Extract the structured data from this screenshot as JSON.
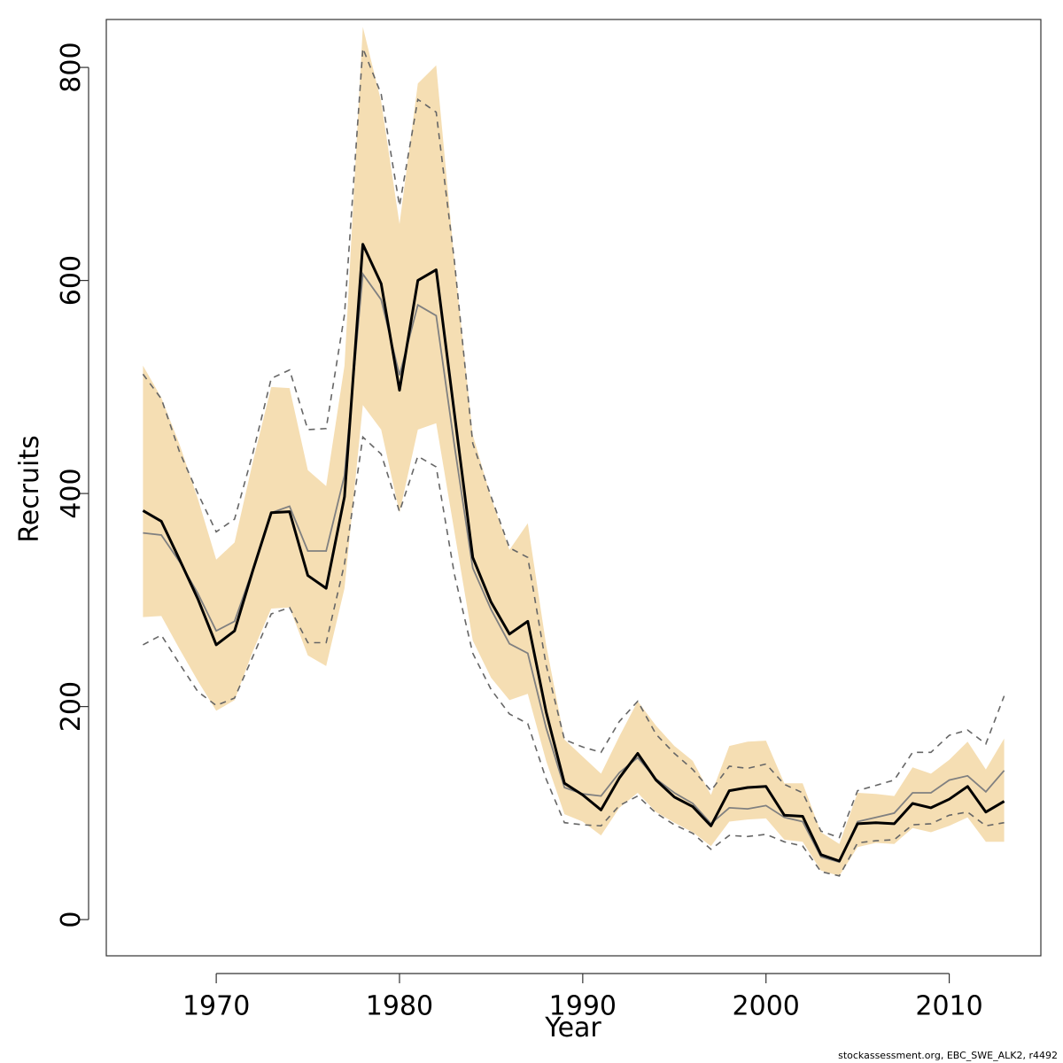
{
  "chart_data": {
    "type": "line",
    "xlabel": "Year",
    "ylabel": "Recruits",
    "xlim": [
      1964,
      2015
    ],
    "ylim": [
      -34,
      845
    ],
    "x_ticks": [
      1970,
      1980,
      1990,
      2000,
      2010
    ],
    "y_ticks": [
      0,
      200,
      400,
      600,
      800
    ],
    "grid": false,
    "legend": "none",
    "colors": {
      "band": "#f5deb3",
      "estimate": "#000000",
      "alternate": "#808080",
      "interval": "#666666"
    },
    "x": [
      1966,
      1967,
      1968,
      1969,
      1970,
      1971,
      1972,
      1973,
      1974,
      1975,
      1976,
      1977,
      1978,
      1979,
      1980,
      1981,
      1982,
      1983,
      1984,
      1985,
      1986,
      1987,
      1988,
      1989,
      1990,
      1991,
      1992,
      1993,
      1994,
      1995,
      1996,
      1997,
      1998,
      1999,
      2000,
      2001,
      2002,
      2003,
      2004,
      2005,
      2006,
      2007,
      2008,
      2009,
      2010,
      2011,
      2012,
      2013
    ],
    "series": [
      {
        "role": "estimate",
        "values": [
          384,
          374,
          338,
          301,
          258,
          271,
          328,
          382,
          383,
          323,
          311,
          397,
          634,
          597,
          497,
          600,
          610,
          475,
          340,
          298,
          268,
          280,
          195,
          128,
          117,
          103,
          133,
          156,
          131,
          115,
          106,
          88,
          121,
          124,
          125,
          98,
          97,
          61,
          55,
          90,
          91,
          90,
          109,
          105,
          113,
          125,
          101,
          111
        ]
      },
      {
        "role": "alternate",
        "values": [
          363,
          361,
          336,
          306,
          271,
          280,
          329,
          382,
          388,
          346,
          346,
          417,
          606,
          582,
          511,
          577,
          567,
          445,
          330,
          291,
          259,
          250,
          180,
          124,
          118,
          116,
          138,
          152,
          132,
          119,
          109,
          90,
          105,
          104,
          107,
          96,
          92,
          59,
          54,
          92,
          96,
          100,
          119,
          119,
          131,
          135,
          120,
          140
        ]
      },
      {
        "role": "band-upper",
        "values": [
          520,
          490,
          446,
          395,
          338,
          354,
          430,
          500,
          499,
          422,
          407,
          520,
          838,
          768,
          653,
          785,
          802,
          618,
          455,
          396,
          347,
          372,
          258,
          169,
          153,
          137,
          172,
          205,
          182,
          163,
          149,
          117,
          163,
          167,
          168,
          128,
          128,
          82,
          71,
          119,
          118,
          116,
          143,
          137,
          150,
          167,
          141,
          170
        ]
      },
      {
        "role": "band-lower",
        "values": [
          284,
          285,
          254,
          224,
          196,
          206,
          252,
          292,
          293,
          248,
          238,
          311,
          483,
          460,
          382,
          460,
          466,
          364,
          262,
          227,
          206,
          212,
          149,
          99,
          92,
          79,
          105,
          119,
          101,
          91,
          82,
          69,
          92,
          94,
          95,
          75,
          73,
          46,
          41,
          68,
          72,
          71,
          86,
          82,
          88,
          96,
          73,
          73
        ]
      },
      {
        "role": "interval-upper",
        "values": [
          512,
          489,
          439,
          400,
          364,
          376,
          438,
          508,
          516,
          460,
          461,
          568,
          818,
          775,
          670,
          770,
          758,
          618,
          447,
          397,
          349,
          340,
          239,
          169,
          162,
          157,
          186,
          205,
          174,
          156,
          141,
          121,
          144,
          142,
          146,
          127,
          119,
          83,
          77,
          121,
          126,
          131,
          157,
          157,
          173,
          178,
          165,
          210
        ]
      },
      {
        "role": "interval-lower",
        "values": [
          258,
          267,
          240,
          214,
          201,
          208,
          247,
          287,
          293,
          260,
          260,
          334,
          453,
          437,
          383,
          435,
          425,
          324,
          250,
          216,
          193,
          184,
          132,
          91,
          89,
          88,
          107,
          116,
          100,
          89,
          81,
          66,
          79,
          78,
          80,
          73,
          69,
          45,
          41,
          72,
          74,
          75,
          89,
          90,
          98,
          101,
          88,
          91
        ]
      }
    ]
  },
  "footer": {
    "credit": "stockassessment.org, EBC_SWE_ALK2, r4492"
  }
}
